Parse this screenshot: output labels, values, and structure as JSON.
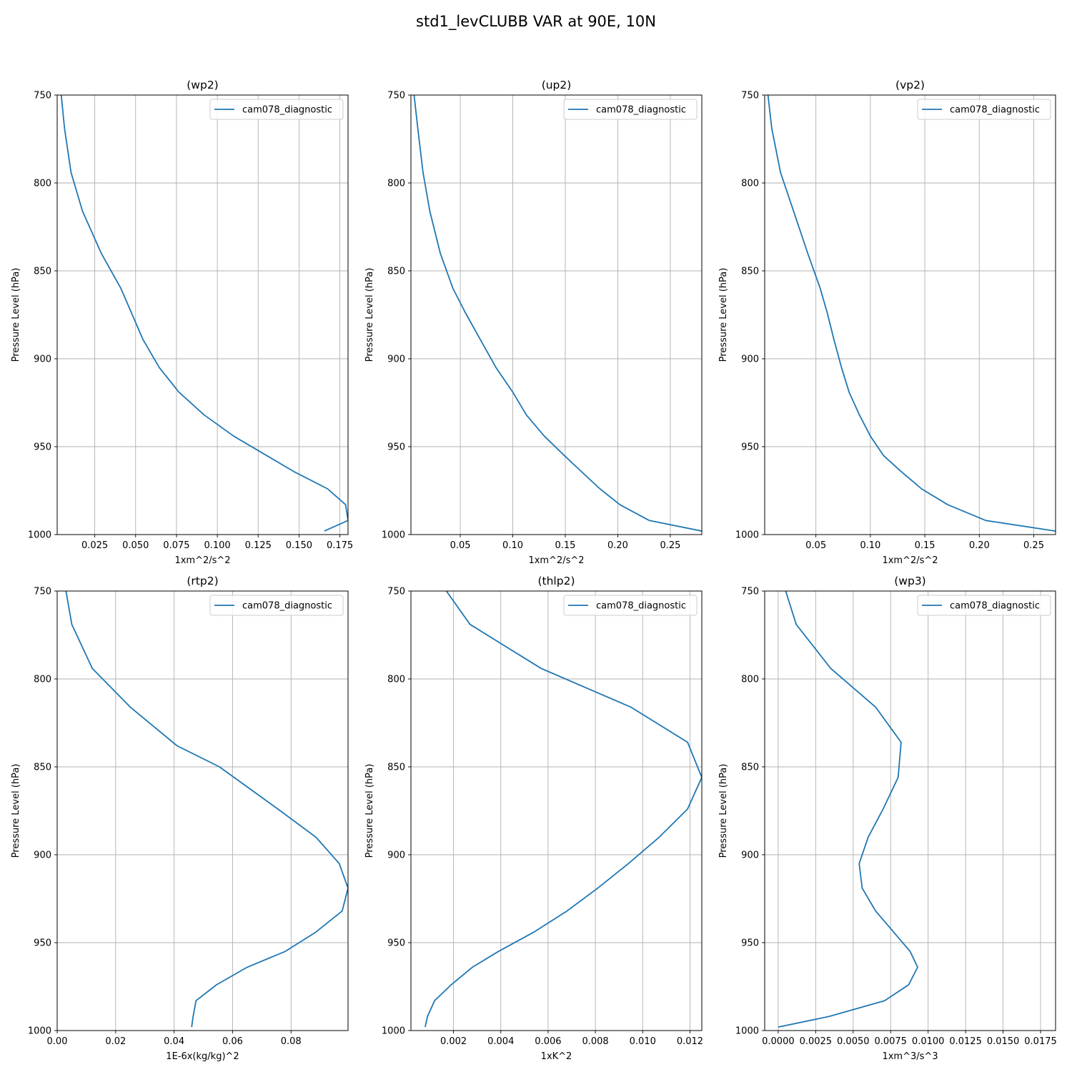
{
  "figure": {
    "title": "std1_levCLUBB VAR at 90E, 10N",
    "line_color": "#1f77b4"
  },
  "chart_data": [
    {
      "type": "line",
      "title": "(wp2)",
      "xlabel": "1xm^2/s^2",
      "ylabel": "Pressure Level (hPa)",
      "xlim": [
        0.002,
        0.18
      ],
      "ylim": [
        1000,
        750
      ],
      "xticks": [
        0.025,
        0.05,
        0.075,
        0.1,
        0.125,
        0.15,
        0.175
      ],
      "xtick_labels": [
        "0.025",
        "0.050",
        "0.075",
        "0.100",
        "0.125",
        "0.150",
        "0.175"
      ],
      "yticks": [
        750,
        800,
        850,
        900,
        950,
        1000
      ],
      "ytick_labels": [
        "750",
        "800",
        "850",
        "900",
        "950",
        "1000"
      ],
      "grid": true,
      "legend_position": "upper right",
      "series": [
        {
          "name": "cam078_diagnostic",
          "x": [
            0.0045,
            0.0065,
            0.0105,
            0.0175,
            0.029,
            0.041,
            0.0545,
            0.0645,
            0.0765,
            0.092,
            0.11,
            0.1465,
            0.1675,
            0.1785,
            0.18,
            0.1655
          ],
          "y": [
            750,
            769,
            794,
            816,
            840,
            860,
            889,
            905,
            919,
            932,
            944,
            964,
            974,
            983,
            992,
            998
          ]
        }
      ]
    },
    {
      "type": "line",
      "title": "(up2)",
      "xlabel": "1xm^2/s^2",
      "ylabel": "Pressure Level (hPa)",
      "xlim": [
        0.003,
        0.28
      ],
      "ylim": [
        1000,
        750
      ],
      "xticks": [
        0.05,
        0.1,
        0.15,
        0.2,
        0.25
      ],
      "xtick_labels": [
        "0.05",
        "0.10",
        "0.15",
        "0.20",
        "0.25"
      ],
      "yticks": [
        750,
        800,
        850,
        900,
        950,
        1000
      ],
      "ytick_labels": [
        "750",
        "800",
        "850",
        "900",
        "950",
        "1000"
      ],
      "grid": true,
      "legend_position": "upper right",
      "series": [
        {
          "name": "cam078_diagnostic",
          "x": [
            0.006,
            0.0095,
            0.0145,
            0.021,
            0.031,
            0.043,
            0.055,
            0.069,
            0.084,
            0.1,
            0.113,
            0.13,
            0.149,
            0.165,
            0.183,
            0.202,
            0.23,
            0.28
          ],
          "y": [
            750,
            769,
            794,
            816,
            840,
            860,
            874,
            889,
            905,
            919,
            932,
            944,
            955,
            964,
            974,
            983,
            992,
            998
          ]
        }
      ]
    },
    {
      "type": "line",
      "title": "(vp2)",
      "xlabel": "1xm^2/s^2",
      "ylabel": "Pressure Level (hPa)",
      "xlim": [
        0.003,
        0.27
      ],
      "ylim": [
        1000,
        750
      ],
      "xticks": [
        0.05,
        0.1,
        0.15,
        0.2,
        0.25
      ],
      "xtick_labels": [
        "0.05",
        "0.10",
        "0.15",
        "0.20",
        "0.25"
      ],
      "yticks": [
        750,
        800,
        850,
        900,
        950,
        1000
      ],
      "ytick_labels": [
        "750",
        "800",
        "850",
        "900",
        "950",
        "1000"
      ],
      "grid": true,
      "legend_position": "upper right",
      "series": [
        {
          "name": "cam078_diagnostic",
          "x": [
            0.006,
            0.0095,
            0.0175,
            0.0295,
            0.0425,
            0.054,
            0.0605,
            0.0665,
            0.0735,
            0.0805,
            0.09,
            0.1,
            0.112,
            0.128,
            0.147,
            0.171,
            0.206,
            0.27
          ],
          "y": [
            750,
            769,
            794,
            816,
            840,
            860,
            874,
            889,
            905,
            919,
            932,
            944,
            955,
            964,
            974,
            983,
            992,
            998
          ]
        }
      ]
    },
    {
      "type": "line",
      "title": "(rtp2)",
      "xlabel": "1E-6x(kg/kg)^2",
      "ylabel": "Pressure Level (hPa)",
      "xlim": [
        0.0,
        0.0995
      ],
      "ylim": [
        1000,
        750
      ],
      "xticks": [
        0.0,
        0.02,
        0.04,
        0.06,
        0.08
      ],
      "xtick_labels": [
        "0.00",
        "0.02",
        "0.04",
        "0.06",
        "0.08"
      ],
      "yticks": [
        750,
        800,
        850,
        900,
        950,
        1000
      ],
      "ytick_labels": [
        "750",
        "800",
        "850",
        "900",
        "950",
        "1000"
      ],
      "grid": true,
      "legend_position": "upper right",
      "series": [
        {
          "name": "cam078_diagnostic",
          "x": [
            0.003,
            0.005,
            0.012,
            0.025,
            0.041,
            0.0555,
            0.0755,
            0.0885,
            0.0965,
            0.0995,
            0.0975,
            0.0885,
            0.078,
            0.065,
            0.0545,
            0.0475,
            0.0465,
            0.046
          ],
          "y": [
            750,
            769,
            794,
            816,
            838,
            850,
            874,
            890,
            905,
            919,
            932,
            944,
            955,
            964,
            974,
            983,
            992,
            998
          ]
        }
      ]
    },
    {
      "type": "line",
      "title": "(thlp2)",
      "xlabel": "1xK^2",
      "ylabel": "Pressure Level (hPa)",
      "xlim": [
        0.0002,
        0.0125
      ],
      "ylim": [
        1000,
        750
      ],
      "xticks": [
        0.002,
        0.004,
        0.006,
        0.008,
        0.01,
        0.012
      ],
      "xtick_labels": [
        "0.002",
        "0.004",
        "0.006",
        "0.008",
        "0.010",
        "0.012"
      ],
      "yticks": [
        750,
        800,
        850,
        900,
        950,
        1000
      ],
      "ytick_labels": [
        "750",
        "800",
        "850",
        "900",
        "950",
        "1000"
      ],
      "grid": true,
      "legend_position": "upper right",
      "series": [
        {
          "name": "cam078_diagnostic",
          "x": [
            0.0017,
            0.0027,
            0.0057,
            0.0095,
            0.0119,
            0.0125,
            0.0119,
            0.0107,
            0.0094,
            0.0081,
            0.0068,
            0.0054,
            0.0039,
            0.0028,
            0.0019,
            0.0012,
            0.0009,
            0.0008
          ],
          "y": [
            750,
            769,
            794,
            816,
            836,
            856,
            874,
            890,
            905,
            919,
            932,
            944,
            955,
            964,
            974,
            983,
            992,
            998
          ]
        }
      ]
    },
    {
      "type": "line",
      "title": "(wp3)",
      "xlabel": "1xm^3/s^3",
      "ylabel": "Pressure Level (hPa)",
      "xlim": [
        -0.0009,
        0.0185
      ],
      "ylim": [
        1000,
        750
      ],
      "xticks": [
        0.0,
        0.0025,
        0.005,
        0.0075,
        0.01,
        0.0125,
        0.015,
        0.0175
      ],
      "xtick_labels": [
        "0.0000",
        "0.0025",
        "0.0050",
        "0.0075",
        "0.0100",
        "0.0125",
        "0.0150",
        "0.0175"
      ],
      "yticks": [
        750,
        800,
        850,
        900,
        950,
        1000
      ],
      "ytick_labels": [
        "750",
        "800",
        "850",
        "900",
        "950",
        "1000"
      ],
      "grid": true,
      "legend_position": "upper right",
      "series": [
        {
          "name": "cam078_diagnostic",
          "x": [
            0.0005,
            0.0012,
            0.0035,
            0.0065,
            0.0082,
            0.008,
            0.007,
            0.006,
            0.0054,
            0.0056,
            0.0065,
            0.0077,
            0.0088,
            0.0093,
            0.0087,
            0.0071,
            0.0034,
            0.0
          ],
          "y": [
            750,
            769,
            794,
            816,
            836,
            856,
            874,
            890,
            905,
            919,
            932,
            944,
            955,
            964,
            974,
            983,
            992,
            998
          ]
        }
      ]
    }
  ]
}
